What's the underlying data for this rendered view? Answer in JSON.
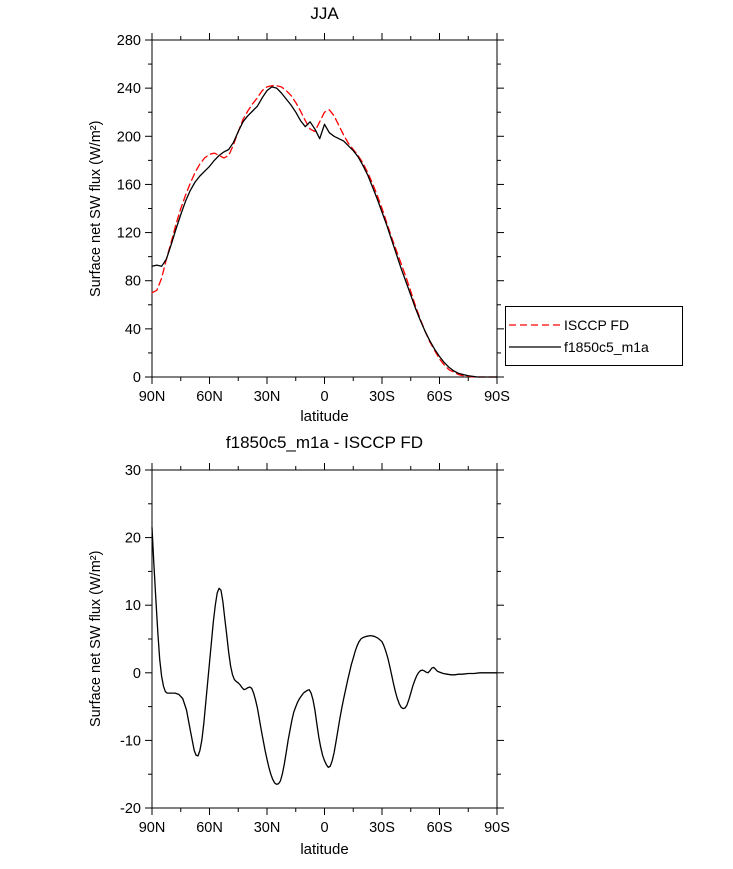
{
  "page": {
    "background": "#ffffff"
  },
  "chart_data": [
    {
      "type": "line",
      "title": "JJA",
      "xlabel": "latitude",
      "ylabel": "Surface net SW flux (W/m²)",
      "xlim": [
        90,
        -90
      ],
      "ylim": [
        0,
        280
      ],
      "grid": false,
      "xticks": [
        90,
        60,
        30,
        0,
        -30,
        -60,
        -90
      ],
      "xtick_labels": [
        "90N",
        "60N",
        "30N",
        "0",
        "30S",
        "60S",
        "90S"
      ],
      "xminor": [
        75,
        45,
        15,
        -15,
        -45,
        -75
      ],
      "yticks": [
        0,
        40,
        80,
        120,
        160,
        200,
        240,
        280
      ],
      "ytick_labels": [
        "0",
        "40",
        "80",
        "120",
        "160",
        "200",
        "240",
        "280"
      ],
      "yminor": [
        20,
        60,
        100,
        140,
        180,
        220,
        260
      ],
      "legend": {
        "position": "outside-right",
        "entries": [
          "ISCCP FD",
          "f1850c5_m1a"
        ]
      },
      "series": [
        {
          "name": "ISCCP FD",
          "color": "#ff0000",
          "dash": "7 4",
          "x": [
            90,
            87.5,
            85,
            82.5,
            80,
            77.5,
            75,
            72.5,
            70,
            67.5,
            65,
            62.5,
            60,
            57.5,
            55,
            52.5,
            50,
            47.5,
            45,
            42.5,
            40,
            37.5,
            35,
            32.5,
            30,
            27.5,
            25,
            22.5,
            20,
            17.5,
            15,
            12.5,
            10,
            7.5,
            5,
            2.5,
            0,
            -2.5,
            -5,
            -7.5,
            -10,
            -12.5,
            -15,
            -17.5,
            -20,
            -22.5,
            -25,
            -27.5,
            -30,
            -32.5,
            -35,
            -37.5,
            -40,
            -42.5,
            -45,
            -47.5,
            -50,
            -52.5,
            -55,
            -57.5,
            -60,
            -62.5,
            -65,
            -67.5,
            -70,
            -72.5,
            -75,
            -77.5,
            -80,
            -85,
            -90
          ],
          "y": [
            70,
            72,
            82,
            98,
            112,
            127,
            140,
            151,
            161,
            170,
            177,
            182,
            185,
            186,
            184,
            182,
            184,
            193,
            204,
            214,
            221,
            227,
            232,
            238,
            241,
            242,
            242,
            241,
            238,
            234,
            228,
            221,
            213,
            206,
            204,
            212,
            220,
            222,
            217,
            209,
            201,
            194,
            189,
            184,
            178,
            170,
            161,
            151,
            140,
            128,
            116,
            105,
            94,
            83,
            71,
            59,
            48,
            38,
            29,
            22,
            15,
            10,
            6,
            4,
            2,
            1,
            0.5,
            0,
            0,
            0,
            0
          ]
        },
        {
          "name": "f1850c5_m1a",
          "color": "#000000",
          "dash": "",
          "x": [
            90,
            87.5,
            85,
            82.5,
            80,
            77.5,
            75,
            72.5,
            70,
            67.5,
            65,
            62.5,
            60,
            57.5,
            55,
            52.5,
            50,
            47.5,
            45,
            42.5,
            40,
            37.5,
            35,
            32.5,
            30,
            27.5,
            25,
            22.5,
            20,
            17.5,
            15,
            12.5,
            10,
            7.5,
            5,
            2.5,
            0,
            -2.5,
            -5,
            -7.5,
            -10,
            -12.5,
            -15,
            -17.5,
            -20,
            -22.5,
            -25,
            -27.5,
            -30,
            -32.5,
            -35,
            -37.5,
            -40,
            -42.5,
            -45,
            -47.5,
            -50,
            -52.5,
            -55,
            -57.5,
            -60,
            -62.5,
            -65,
            -67.5,
            -70,
            -72.5,
            -75,
            -77.5,
            -80,
            -85,
            -90
          ],
          "y": [
            92,
            93,
            92,
            98,
            110,
            123,
            135,
            146,
            155,
            162,
            167,
            171,
            175,
            180,
            184,
            187,
            189,
            195,
            204,
            212,
            217,
            221,
            225,
            232,
            238,
            241,
            240,
            236,
            231,
            226,
            220,
            213,
            208,
            212,
            206,
            198,
            210,
            203,
            200,
            198,
            196,
            192,
            188,
            183,
            176,
            168,
            158,
            148,
            137,
            126,
            114,
            102,
            90,
            79,
            68,
            57,
            47,
            38,
            30,
            23,
            17,
            12,
            8,
            5,
            3,
            2,
            1,
            0.5,
            0,
            0,
            0
          ]
        }
      ]
    },
    {
      "type": "line",
      "title": "f1850c5_m1a - ISCCP FD",
      "xlabel": "latitude",
      "ylabel": "Surface net SW flux (W/m²)",
      "xlim": [
        90,
        -90
      ],
      "ylim": [
        -20,
        30
      ],
      "grid": false,
      "xticks": [
        90,
        60,
        30,
        0,
        -30,
        -60,
        -90
      ],
      "xtick_labels": [
        "90N",
        "60N",
        "30N",
        "0",
        "30S",
        "60S",
        "90S"
      ],
      "xminor": [
        75,
        45,
        15,
        -15,
        -45,
        -75
      ],
      "yticks": [
        -20,
        -10,
        0,
        10,
        20,
        30
      ],
      "ytick_labels": [
        "-20",
        "-10",
        "0",
        "10",
        "20",
        "30"
      ],
      "yminor": [
        -15,
        -5,
        5,
        15,
        25
      ],
      "legend": null,
      "series": [
        {
          "name": "f1850c5_m1a - ISCCP FD",
          "color": "#000000",
          "dash": "",
          "x": [
            90,
            89,
            88,
            87,
            86,
            85,
            84,
            83,
            82,
            80,
            78,
            76,
            74,
            72,
            70,
            68,
            67,
            66,
            65,
            64,
            63,
            62,
            61,
            60,
            59,
            58,
            57,
            56,
            55,
            54,
            53,
            52,
            51,
            50,
            49,
            48,
            47,
            46,
            45,
            44,
            43,
            42,
            41,
            40,
            39,
            38,
            37,
            36,
            35,
            34,
            33,
            32,
            31,
            30,
            29,
            28,
            27,
            26,
            25,
            24,
            23,
            22,
            21,
            20,
            19,
            18,
            17,
            16,
            15,
            14,
            13,
            12,
            11,
            10,
            9,
            8,
            7,
            6,
            5,
            4,
            3,
            2,
            1,
            0,
            -1,
            -2,
            -3,
            -4,
            -5,
            -6,
            -7,
            -8,
            -9,
            -10,
            -11,
            -12,
            -13,
            -14,
            -15,
            -16,
            -17,
            -18,
            -19,
            -20,
            -22,
            -24,
            -26,
            -28,
            -30,
            -31,
            -32,
            -33,
            -34,
            -35,
            -36,
            -37,
            -38,
            -39,
            -40,
            -41,
            -42,
            -43,
            -44,
            -45,
            -46,
            -47,
            -48,
            -49,
            -50,
            -51,
            -52,
            -53,
            -54,
            -55,
            -56,
            -57,
            -58,
            -59,
            -60,
            -62,
            -64,
            -66,
            -68,
            -70,
            -72,
            -75,
            -78,
            -81,
            -84,
            -87,
            -90
          ],
          "y": [
            21.5,
            16,
            11,
            6,
            2,
            -0.5,
            -2,
            -2.8,
            -3,
            -3,
            -3,
            -3.2,
            -3.8,
            -5.5,
            -8.5,
            -11.5,
            -12.2,
            -12.3,
            -11.5,
            -10,
            -7.5,
            -4.5,
            -1.5,
            1.5,
            4.5,
            7.5,
            10,
            11.8,
            12.5,
            12.2,
            10.5,
            8,
            5.5,
            3,
            1,
            -0.3,
            -1,
            -1.3,
            -1.5,
            -1.8,
            -2.2,
            -2.5,
            -2.4,
            -2.2,
            -2.1,
            -2.3,
            -3,
            -4,
            -5.2,
            -6.8,
            -8.5,
            -10,
            -11.5,
            -12.8,
            -14,
            -15,
            -15.8,
            -16.3,
            -16.5,
            -16.4,
            -16,
            -15,
            -13.5,
            -11.8,
            -10,
            -8.5,
            -7,
            -5.8,
            -5,
            -4.3,
            -3.8,
            -3.4,
            -3,
            -2.8,
            -2.6,
            -2.5,
            -3,
            -4,
            -5.5,
            -7.5,
            -9.5,
            -11,
            -12.2,
            -13,
            -13.6,
            -14,
            -13.8,
            -13,
            -11.8,
            -10.2,
            -8.5,
            -6.8,
            -5.2,
            -3.8,
            -2.5,
            -1.2,
            0,
            1.2,
            2.2,
            3.2,
            4,
            4.6,
            5,
            5.2,
            5.4,
            5.5,
            5.4,
            5.1,
            4.6,
            4,
            3.2,
            2.2,
            1,
            -0.3,
            -1.6,
            -2.8,
            -3.8,
            -4.6,
            -5.1,
            -5.3,
            -5.2,
            -4.8,
            -4,
            -3,
            -2,
            -1.2,
            -0.5,
            0,
            0.3,
            0.4,
            0.3,
            0.1,
            0,
            0.3,
            0.7,
            0.8,
            0.5,
            0.2,
            0.1,
            -0.1,
            -0.2,
            -0.3,
            -0.3,
            -0.2,
            -0.2,
            -0.1,
            -0.1,
            0,
            0,
            0,
            0
          ]
        }
      ]
    }
  ]
}
